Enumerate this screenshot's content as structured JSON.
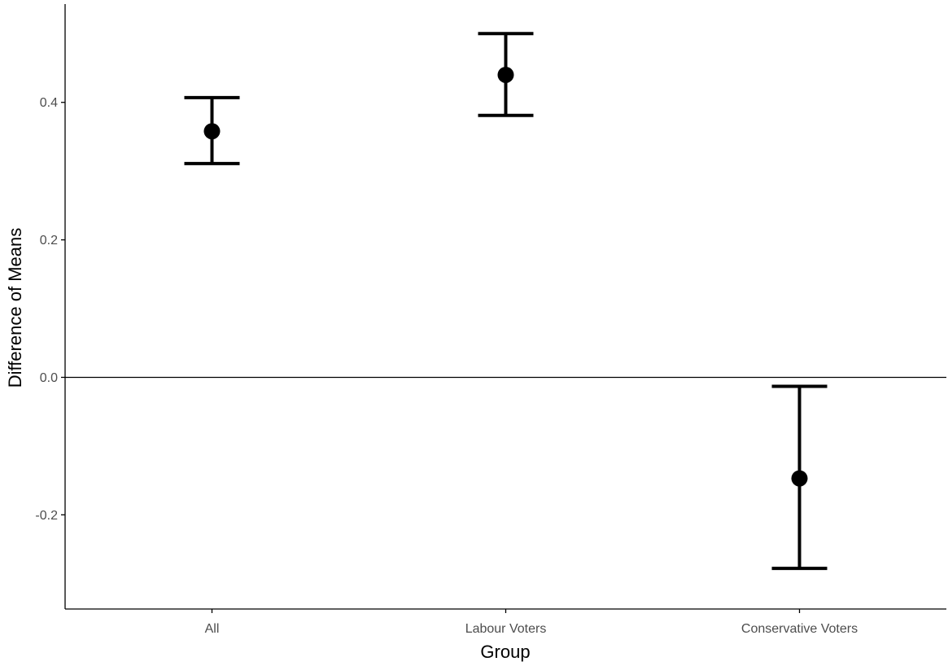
{
  "chart_data": {
    "type": "errorbar",
    "xlabel": "Group",
    "ylabel": "Difference of Means",
    "categories": [
      "All",
      "Labour Voters",
      "Conservative Voters"
    ],
    "points": [
      {
        "category": "All",
        "estimate": 0.358,
        "lower": 0.311,
        "upper": 0.407
      },
      {
        "category": "Labour Voters",
        "estimate": 0.44,
        "lower": 0.381,
        "upper": 0.5
      },
      {
        "category": "Conservative Voters",
        "estimate": -0.147,
        "lower": -0.278,
        "upper": -0.013
      }
    ],
    "yticks": [
      -0.2,
      0.0,
      0.2,
      0.4
    ],
    "ytick_labels": [
      "-0.2",
      "0.0",
      "0.2",
      "0.4"
    ],
    "ylim": [
      -0.337,
      0.543
    ],
    "reference_line": 0,
    "grid": false,
    "colors": {
      "marks": "#000000",
      "axis": "#000000",
      "tick_text": "#4d4d4d"
    }
  }
}
